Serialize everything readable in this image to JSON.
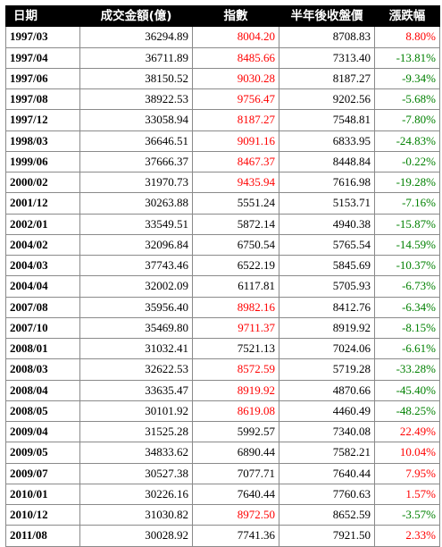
{
  "table": {
    "headers": [
      "日期",
      "成交金額(億)",
      "指數",
      "半年後收盤價",
      "漲跌幅"
    ],
    "colors": {
      "up": "#ff0000",
      "down": "#008000",
      "neutral": "#000000"
    },
    "rows": [
      {
        "date": "1997/03",
        "amount": "36294.89",
        "index": "8004.20",
        "index_color": "red",
        "half_year_close": "8708.83",
        "change": "8.80%",
        "change_color": "red"
      },
      {
        "date": "1997/04",
        "amount": "36711.89",
        "index": "8485.66",
        "index_color": "red",
        "half_year_close": "7313.40",
        "change": "-13.81%",
        "change_color": "green"
      },
      {
        "date": "1997/06",
        "amount": "38150.52",
        "index": "9030.28",
        "index_color": "red",
        "half_year_close": "8187.27",
        "change": "-9.34%",
        "change_color": "green"
      },
      {
        "date": "1997/08",
        "amount": "38922.53",
        "index": "9756.47",
        "index_color": "red",
        "half_year_close": "9202.56",
        "change": "-5.68%",
        "change_color": "green"
      },
      {
        "date": "1997/12",
        "amount": "33058.94",
        "index": "8187.27",
        "index_color": "red",
        "half_year_close": "7548.81",
        "change": "-7.80%",
        "change_color": "green"
      },
      {
        "date": "1998/03",
        "amount": "36646.51",
        "index": "9091.16",
        "index_color": "red",
        "half_year_close": "6833.95",
        "change": "-24.83%",
        "change_color": "green"
      },
      {
        "date": "1999/06",
        "amount": "37666.37",
        "index": "8467.37",
        "index_color": "red",
        "half_year_close": "8448.84",
        "change": "-0.22%",
        "change_color": "green"
      },
      {
        "date": "2000/02",
        "amount": "31970.73",
        "index": "9435.94",
        "index_color": "red",
        "half_year_close": "7616.98",
        "change": "-19.28%",
        "change_color": "green"
      },
      {
        "date": "2001/12",
        "amount": "30263.88",
        "index": "5551.24",
        "index_color": "black",
        "half_year_close": "5153.71",
        "change": "-7.16%",
        "change_color": "green"
      },
      {
        "date": "2002/01",
        "amount": "33549.51",
        "index": "5872.14",
        "index_color": "black",
        "half_year_close": "4940.38",
        "change": "-15.87%",
        "change_color": "green"
      },
      {
        "date": "2004/02",
        "amount": "32096.84",
        "index": "6750.54",
        "index_color": "black",
        "half_year_close": "5765.54",
        "change": "-14.59%",
        "change_color": "green"
      },
      {
        "date": "2004/03",
        "amount": "37743.46",
        "index": "6522.19",
        "index_color": "black",
        "half_year_close": "5845.69",
        "change": "-10.37%",
        "change_color": "green"
      },
      {
        "date": "2004/04",
        "amount": "32002.09",
        "index": "6117.81",
        "index_color": "black",
        "half_year_close": "5705.93",
        "change": "-6.73%",
        "change_color": "green"
      },
      {
        "date": "2007/08",
        "amount": "35956.40",
        "index": "8982.16",
        "index_color": "red",
        "half_year_close": "8412.76",
        "change": "-6.34%",
        "change_color": "green"
      },
      {
        "date": "2007/10",
        "amount": "35469.80",
        "index": "9711.37",
        "index_color": "red",
        "half_year_close": "8919.92",
        "change": "-8.15%",
        "change_color": "green"
      },
      {
        "date": "2008/01",
        "amount": "31032.41",
        "index": "7521.13",
        "index_color": "black",
        "half_year_close": "7024.06",
        "change": "-6.61%",
        "change_color": "green"
      },
      {
        "date": "2008/03",
        "amount": "32622.53",
        "index": "8572.59",
        "index_color": "red",
        "half_year_close": "5719.28",
        "change": "-33.28%",
        "change_color": "green"
      },
      {
        "date": "2008/04",
        "amount": "33635.47",
        "index": "8919.92",
        "index_color": "red",
        "half_year_close": "4870.66",
        "change": "-45.40%",
        "change_color": "green"
      },
      {
        "date": "2008/05",
        "amount": "30101.92",
        "index": "8619.08",
        "index_color": "red",
        "half_year_close": "4460.49",
        "change": "-48.25%",
        "change_color": "green"
      },
      {
        "date": "2009/04",
        "amount": "31525.28",
        "index": "5992.57",
        "index_color": "black",
        "half_year_close": "7340.08",
        "change": "22.49%",
        "change_color": "red"
      },
      {
        "date": "2009/05",
        "amount": "34833.62",
        "index": "6890.44",
        "index_color": "black",
        "half_year_close": "7582.21",
        "change": "10.04%",
        "change_color": "red"
      },
      {
        "date": "2009/07",
        "amount": "30527.38",
        "index": "7077.71",
        "index_color": "black",
        "half_year_close": "7640.44",
        "change": "7.95%",
        "change_color": "red"
      },
      {
        "date": "2010/01",
        "amount": "30226.16",
        "index": "7640.44",
        "index_color": "black",
        "half_year_close": "7760.63",
        "change": "1.57%",
        "change_color": "red"
      },
      {
        "date": "2010/12",
        "amount": "31030.82",
        "index": "8972.50",
        "index_color": "red",
        "half_year_close": "8652.59",
        "change": "-3.57%",
        "change_color": "green"
      },
      {
        "date": "2011/08",
        "amount": "30028.92",
        "index": "7741.36",
        "index_color": "black",
        "half_year_close": "7921.50",
        "change": "2.33%",
        "change_color": "red"
      }
    ]
  }
}
